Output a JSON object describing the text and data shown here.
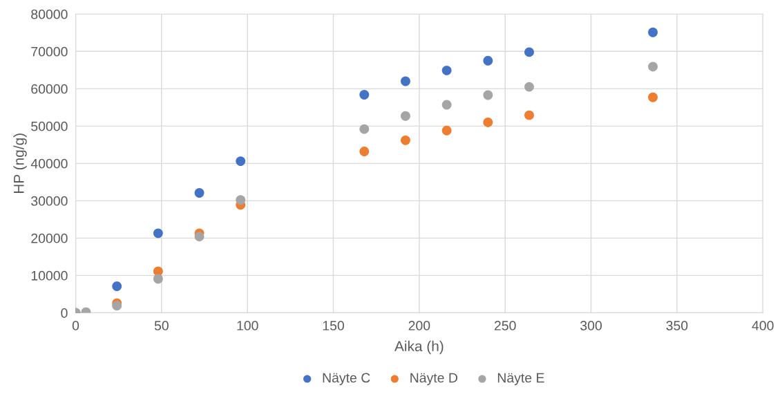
{
  "chart_data": {
    "type": "scatter",
    "xlabel": "Aika (h)",
    "ylabel": "HP (ng/g)",
    "x": [
      0,
      6,
      24,
      48,
      72,
      96,
      168,
      192,
      216,
      240,
      264,
      336
    ],
    "series": [
      {
        "name": "Näyte C",
        "color": "#4472c4",
        "values": [
          0,
          null,
          7100,
          21300,
          32100,
          40600,
          58400,
          62000,
          64900,
          67500,
          69800,
          75100
        ]
      },
      {
        "name": "Näyte D",
        "color": "#ed7d31",
        "values": [
          0,
          null,
          2600,
          11100,
          21300,
          28900,
          43200,
          46200,
          48800,
          51000,
          52900,
          57700
        ]
      },
      {
        "name": "Näyte E",
        "color": "#a5a5a5",
        "values": [
          0,
          200,
          1900,
          9100,
          20400,
          30200,
          49200,
          52700,
          55700,
          58300,
          60500,
          65900
        ]
      }
    ],
    "xlim": [
      0,
      400
    ],
    "xticks": [
      0,
      50,
      100,
      150,
      200,
      250,
      300,
      350,
      400
    ],
    "ylim": [
      0,
      80000
    ],
    "yticks": [
      0,
      10000,
      20000,
      30000,
      40000,
      50000,
      60000,
      70000,
      80000
    ],
    "grid": true,
    "legend": "bottom",
    "marker": "circle"
  }
}
